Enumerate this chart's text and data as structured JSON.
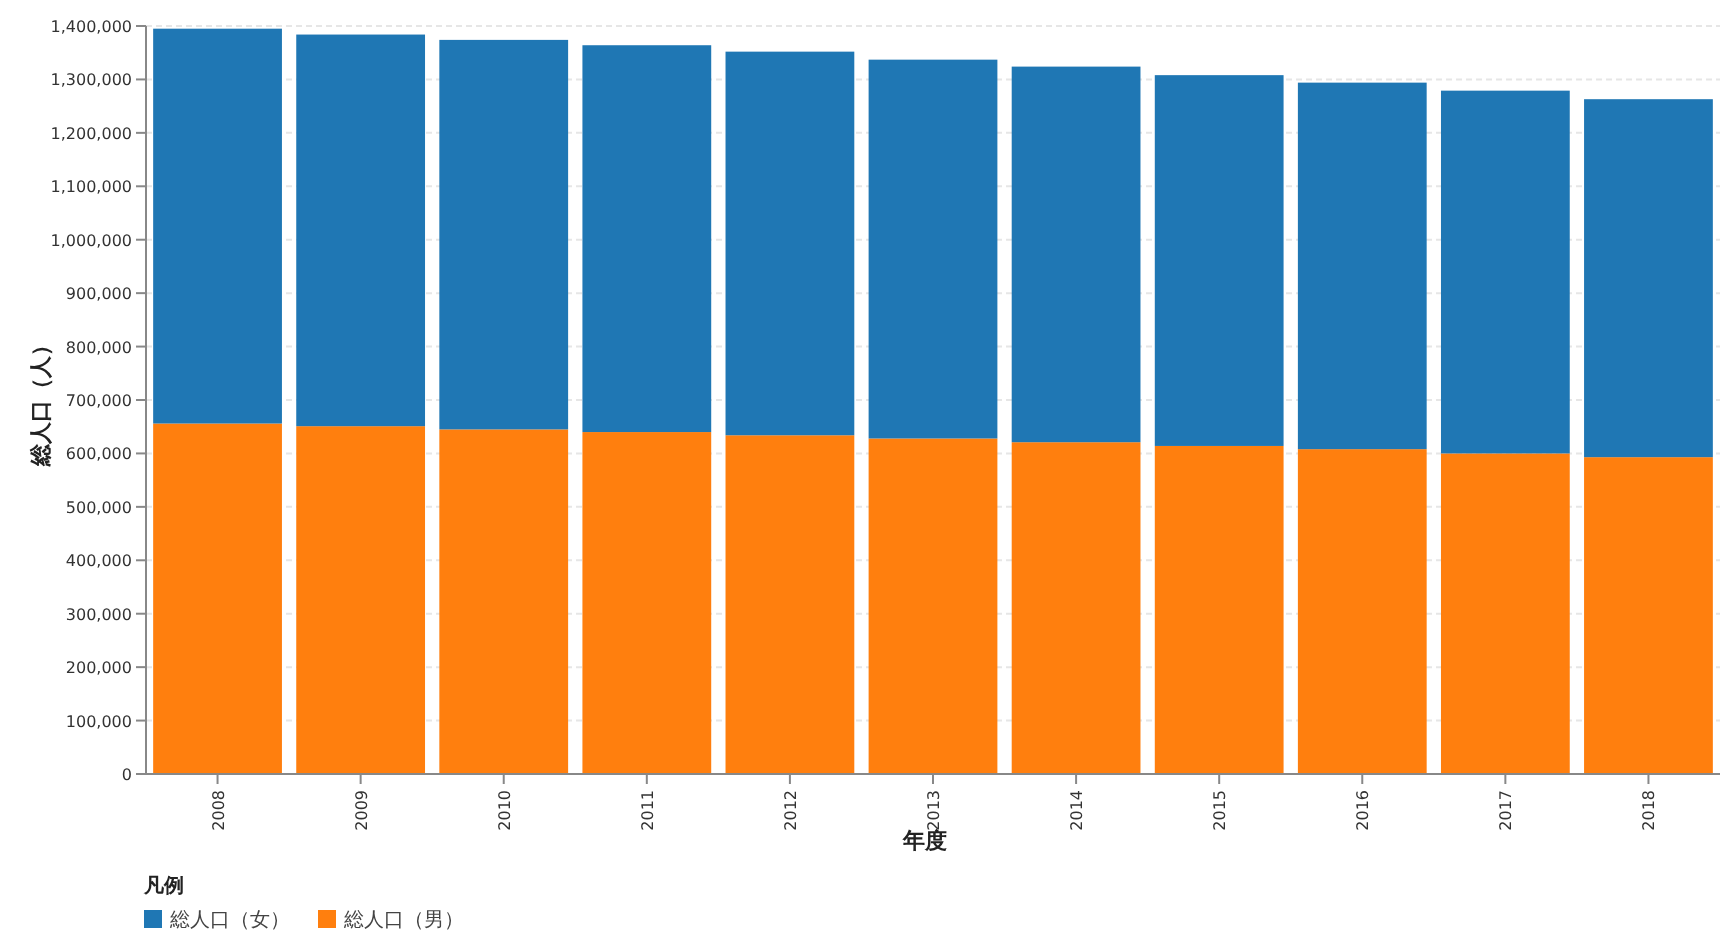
{
  "chart_data": {
    "type": "bar",
    "stacked": true,
    "xlabel": "年度",
    "ylabel": "総人口（人）",
    "legend_title": "凡例",
    "legend": "bottom left",
    "grid": "y",
    "categories": [
      "2008",
      "2009",
      "2010",
      "2011",
      "2012",
      "2013",
      "2014",
      "2015",
      "2016",
      "2017",
      "2018"
    ],
    "ylim": [
      0,
      1400000
    ],
    "yticks": [
      0,
      {
        "value": 100000,
        "label": "100,000"
      },
      {
        "value": 200000,
        "label": "200,000"
      },
      {
        "value": 300000,
        "label": "300,000"
      },
      {
        "value": 400000,
        "label": "400,000"
      },
      {
        "value": 500000,
        "label": "500,000"
      },
      {
        "value": 600000,
        "label": "600,000"
      },
      {
        "value": 700000,
        "label": "700,000"
      },
      {
        "value": 800000,
        "label": "800,000"
      },
      {
        "value": 900000,
        "label": "900,000"
      },
      {
        "value": 1000000,
        "label": "1,000,000"
      },
      {
        "value": 1100000,
        "label": "1,100,000"
      },
      {
        "value": 1200000,
        "label": "1,200,000"
      },
      {
        "value": 1300000,
        "label": "1,300,000"
      },
      {
        "value": 1400000,
        "label": "1,400,000"
      }
    ],
    "series": [
      {
        "name": "総人口（男）",
        "color": "#ff7f0e",
        "values": [
          656000,
          651000,
          645000,
          640000,
          634000,
          628000,
          621000,
          614000,
          608000,
          600000,
          593000
        ]
      },
      {
        "name": "総人口（女）",
        "color": "#1f77b4",
        "values": [
          739000,
          733000,
          729000,
          724000,
          718000,
          709000,
          703000,
          694000,
          686000,
          679000,
          670000
        ]
      }
    ]
  }
}
